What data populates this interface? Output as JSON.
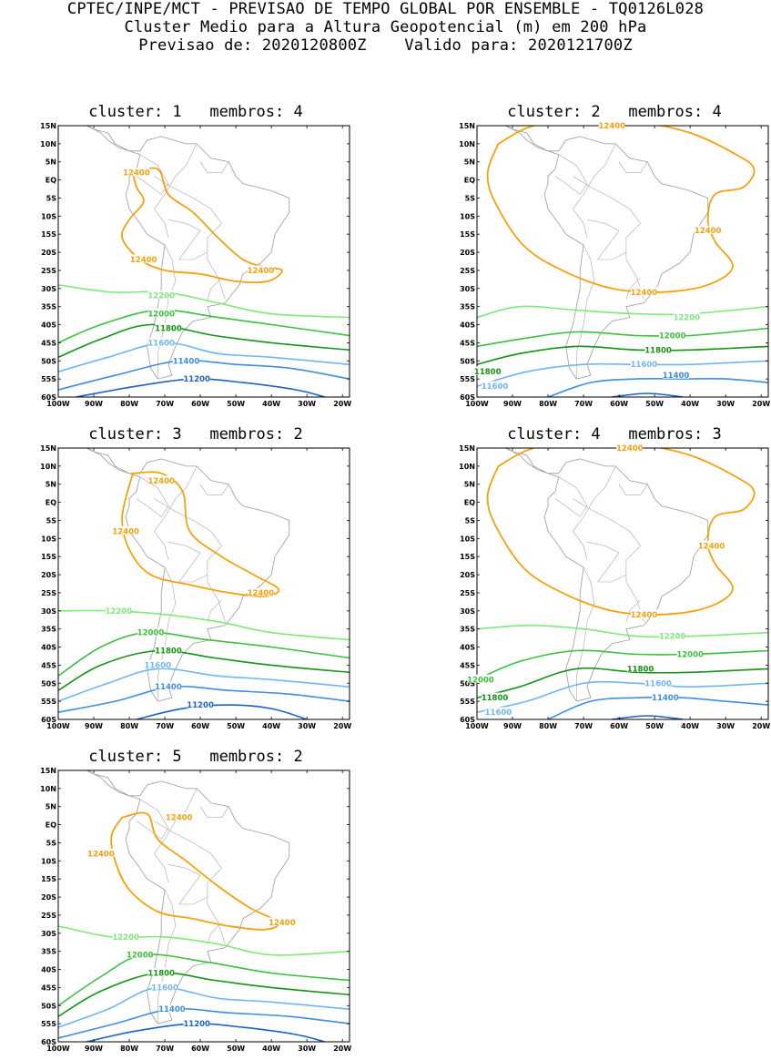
{
  "header": {
    "line1": "CPTEC/INPE/MCT - PREVISAO DE TEMPO GLOBAL POR ENSEMBLE - TQ0126L028",
    "line2": "Cluster Medio para a Altura Geopotencial (m) em 200 hPa",
    "line3": "Previsao de: 2020120800Z    Valido para: 2020121700Z"
  },
  "lat_ticks": [
    "15N",
    "10N",
    "5N",
    "EQ",
    "5S",
    "10S",
    "15S",
    "20S",
    "25S",
    "30S",
    "35S",
    "40S",
    "45S",
    "50S",
    "55S",
    "60S"
  ],
  "lon_ticks": [
    "100W",
    "90W",
    "80W",
    "70W",
    "60W",
    "50W",
    "40W",
    "30W",
    "20W"
  ],
  "contour_colors": {
    "12400": "#f5a10e",
    "12200": "#7ee87a",
    "12000": "#3cbf3a",
    "11800": "#149314",
    "11600": "#70b5f0",
    "11400": "#3b8ee0",
    "11200": "#1a62c8"
  },
  "panels": [
    {
      "title": "cluster: 1   membros: 4",
      "labels": [
        {
          "text": "12400",
          "lon": -78,
          "lat": 2
        },
        {
          "text": "12400",
          "lon": -76,
          "lat": -22
        },
        {
          "text": "12400",
          "lon": -43,
          "lat": -25
        },
        {
          "text": "12200",
          "lon": -71,
          "lat": -32
        },
        {
          "text": "12000",
          "lon": -71,
          "lat": -37
        },
        {
          "text": "11800",
          "lon": -69,
          "lat": -41
        },
        {
          "text": "11600",
          "lon": -71,
          "lat": -45
        },
        {
          "text": "11400",
          "lon": -64,
          "lat": -50
        },
        {
          "text": "11200",
          "lon": -61,
          "lat": -55
        }
      ]
    },
    {
      "title": "cluster: 2   membros: 4",
      "labels": [
        {
          "text": "12400",
          "lon": -62,
          "lat": 15
        },
        {
          "text": "12400",
          "lon": -35,
          "lat": -14
        },
        {
          "text": "12400",
          "lon": -53,
          "lat": -31
        },
        {
          "text": "12200",
          "lon": -41,
          "lat": -38
        },
        {
          "text": "12000",
          "lon": -45,
          "lat": -43
        },
        {
          "text": "11800",
          "lon": -49,
          "lat": -47
        },
        {
          "text": "11800",
          "lon": -97,
          "lat": -53
        },
        {
          "text": "11600",
          "lon": -53,
          "lat": -51
        },
        {
          "text": "11600",
          "lon": -95,
          "lat": -57
        },
        {
          "text": "11400",
          "lon": -44,
          "lat": -54
        }
      ]
    },
    {
      "title": "cluster: 3   membros: 2",
      "labels": [
        {
          "text": "12400",
          "lon": -71,
          "lat": 6
        },
        {
          "text": "12400",
          "lon": -81,
          "lat": -8
        },
        {
          "text": "12400",
          "lon": -43,
          "lat": -25
        },
        {
          "text": "12200",
          "lon": -83,
          "lat": -30
        },
        {
          "text": "12000",
          "lon": -74,
          "lat": -36
        },
        {
          "text": "11800",
          "lon": -69,
          "lat": -41
        },
        {
          "text": "11600",
          "lon": -72,
          "lat": -45
        },
        {
          "text": "11400",
          "lon": -69,
          "lat": -51
        },
        {
          "text": "11200",
          "lon": -60,
          "lat": -56
        }
      ]
    },
    {
      "title": "cluster: 4   membros: 3",
      "labels": [
        {
          "text": "12400",
          "lon": -57,
          "lat": 15
        },
        {
          "text": "12400",
          "lon": -34,
          "lat": -12
        },
        {
          "text": "12400",
          "lon": -53,
          "lat": -31
        },
        {
          "text": "12200",
          "lon": -45,
          "lat": -37
        },
        {
          "text": "12000",
          "lon": -40,
          "lat": -42
        },
        {
          "text": "11800",
          "lon": -54,
          "lat": -46
        },
        {
          "text": "12000",
          "lon": -99,
          "lat": -49
        },
        {
          "text": "11800",
          "lon": -95,
          "lat": -54
        },
        {
          "text": "11600",
          "lon": -49,
          "lat": -50
        },
        {
          "text": "11400",
          "lon": -47,
          "lat": -54
        },
        {
          "text": "11600",
          "lon": -94,
          "lat": -58
        }
      ]
    },
    {
      "title": "cluster: 5   membros: 2",
      "labels": [
        {
          "text": "12400",
          "lon": -66,
          "lat": 2
        },
        {
          "text": "12400",
          "lon": -88,
          "lat": -8
        },
        {
          "text": "12400",
          "lon": -37,
          "lat": -27
        },
        {
          "text": "12200",
          "lon": -81,
          "lat": -31
        },
        {
          "text": "12000",
          "lon": -77,
          "lat": -36
        },
        {
          "text": "11800",
          "lon": -71,
          "lat": -41
        },
        {
          "text": "11600",
          "lon": -70,
          "lat": -45
        },
        {
          "text": "11400",
          "lon": -68,
          "lat": -51
        },
        {
          "text": "11200",
          "lon": -61,
          "lat": -55
        }
      ]
    }
  ]
}
